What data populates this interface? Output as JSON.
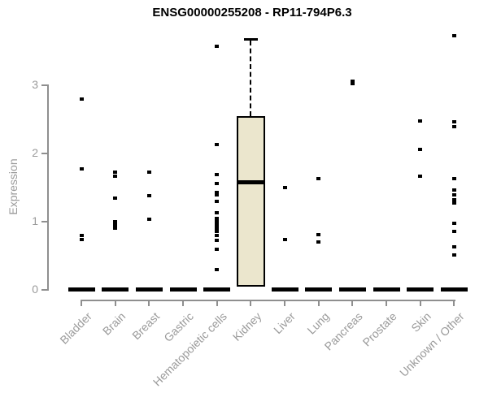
{
  "header": {
    "title": "ENSG00000255208 - RP11-794P6.3"
  },
  "chart_data": {
    "type": "boxplot",
    "title": "ENSG00000255208 - RP11-794P6.3",
    "xlabel": "",
    "ylabel": "Expression",
    "ylim": [
      0,
      3.85
    ],
    "yticks": [
      0,
      1,
      2,
      3
    ],
    "grid": false,
    "legend": "none",
    "colors": {
      "box_fill": "#ebe6cd",
      "box_border": "#000000",
      "median": "#000000",
      "point": "#000000",
      "axis": "#8f8f8f",
      "tick_label": "#9a9a9a",
      "title": "#000000"
    },
    "categories": [
      "Bladder",
      "Brain",
      "Breast",
      "Gastric",
      "Hematopoietic cells",
      "Kidney",
      "Liver",
      "Lung",
      "Pancreas",
      "Prostate",
      "Skin",
      "Unknown / Other"
    ],
    "groups": [
      {
        "label": "Bladder",
        "box": {
          "q1": 0,
          "median": 0,
          "q3": 0,
          "whisker_low": 0,
          "whisker_high": 0
        },
        "points": [
          2.78,
          1.76,
          0.79,
          0.73
        ]
      },
      {
        "label": "Brain",
        "box": {
          "q1": 0,
          "median": 0,
          "q3": 0,
          "whisker_low": 0,
          "whisker_high": 0
        },
        "points": [
          1.72,
          1.66,
          1.33,
          0.99,
          0.94,
          0.89
        ]
      },
      {
        "label": "Breast",
        "box": {
          "q1": 0,
          "median": 0,
          "q3": 0,
          "whisker_low": 0,
          "whisker_high": 0
        },
        "points": [
          1.72,
          1.37,
          1.02
        ]
      },
      {
        "label": "Gastric",
        "box": {
          "q1": 0,
          "median": 0,
          "q3": 0,
          "whisker_low": 0,
          "whisker_high": 0
        },
        "points": []
      },
      {
        "label": "Hematopoietic cells",
        "box": {
          "q1": 0,
          "median": 0,
          "q3": 0,
          "whisker_low": 0,
          "whisker_high": 0
        },
        "points": [
          3.56,
          2.12,
          1.68,
          1.55,
          1.42,
          1.38,
          1.28,
          1.12,
          1.04,
          0.99,
          0.94,
          0.89,
          0.84,
          0.79,
          0.71,
          0.58,
          0.28
        ]
      },
      {
        "label": "Kidney",
        "box": {
          "q1": 0.03,
          "median": 1.56,
          "q3": 2.53,
          "whisker_low": 0.03,
          "whisker_high": 3.67
        },
        "points": []
      },
      {
        "label": "Liver",
        "box": {
          "q1": 0,
          "median": 0,
          "q3": 0,
          "whisker_low": 0,
          "whisker_high": 0
        },
        "points": [
          1.49,
          0.73
        ]
      },
      {
        "label": "Lung",
        "box": {
          "q1": 0,
          "median": 0,
          "q3": 0,
          "whisker_low": 0,
          "whisker_high": 0
        },
        "points": [
          1.62,
          0.8,
          0.69
        ]
      },
      {
        "label": "Pancreas",
        "box": {
          "q1": 0,
          "median": 0,
          "q3": 0,
          "whisker_low": 0,
          "whisker_high": 0
        },
        "points": [
          3.05,
          3.01
        ]
      },
      {
        "label": "Prostate",
        "box": {
          "q1": 0,
          "median": 0,
          "q3": 0,
          "whisker_low": 0,
          "whisker_high": 0
        },
        "points": []
      },
      {
        "label": "Skin",
        "box": {
          "q1": 0,
          "median": 0,
          "q3": 0,
          "whisker_low": 0,
          "whisker_high": 0
        },
        "points": [
          2.46,
          2.05,
          1.65
        ]
      },
      {
        "label": "Unknown / Other",
        "box": {
          "q1": 0,
          "median": 0,
          "q3": 0,
          "whisker_low": 0,
          "whisker_high": 0
        },
        "points": [
          3.72,
          2.45,
          2.38,
          1.62,
          1.45,
          1.38,
          1.31,
          1.26,
          0.96,
          0.85,
          0.62,
          0.5
        ]
      }
    ]
  }
}
